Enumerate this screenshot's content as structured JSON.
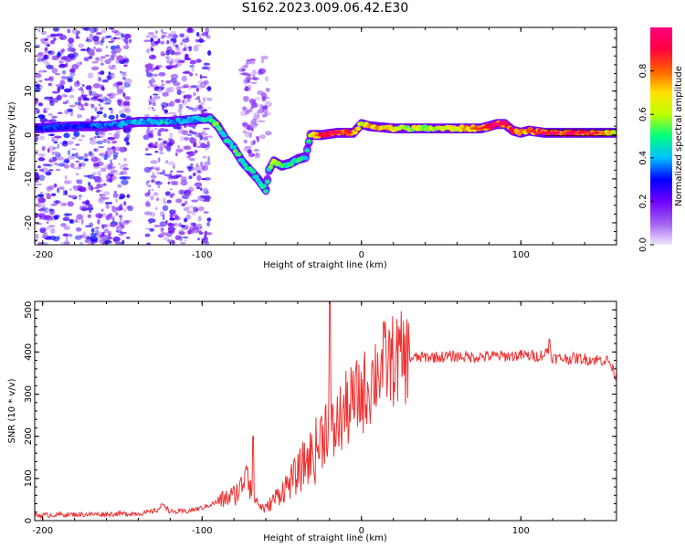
{
  "title": "S162.2023.009.06.42.E30",
  "chart_data": [
    {
      "type": "heatmap",
      "title": "S162.2023.009.06.42.E30",
      "xlabel": "Height of straight line (km)",
      "ylabel": "Frequency (Hz)",
      "xlim": [
        -205,
        160
      ],
      "ylim": [
        -25,
        24.5
      ],
      "x_ticks": [
        -200,
        -100,
        0,
        100
      ],
      "y_ticks": [
        -20,
        -10,
        0,
        10,
        20
      ],
      "colorbar": {
        "label": "Normalized spectral amplitude",
        "range": [
          0,
          1
        ],
        "ticks": [
          0.0,
          0.2,
          0.4,
          0.6,
          0.8
        ],
        "colormap": [
          "#f2e6ff",
          "#a060f0",
          "#7000ff",
          "#0000ff",
          "#00c0ff",
          "#00ff80",
          "#c0ff00",
          "#ffe000",
          "#ff6000",
          "#ff0040",
          "#ff0080"
        ]
      },
      "ridge": {
        "x": [
          -205,
          -180,
          -160,
          -140,
          -120,
          -105,
          -95,
          -90,
          -85,
          -80,
          -75,
          -70,
          -65,
          -60,
          -58,
          -55,
          -50,
          -45,
          -40,
          -35,
          -32,
          -25,
          -15,
          -5,
          0,
          5,
          20,
          40,
          60,
          75,
          85,
          90,
          95,
          100,
          105,
          115,
          130,
          145,
          160
        ],
        "y": [
          1.5,
          2.0,
          2.0,
          3.0,
          3.0,
          3.5,
          3.8,
          2.0,
          -1.0,
          -3.0,
          -6.0,
          -8.0,
          -10.0,
          -12.5,
          -8.0,
          -6.0,
          -7.0,
          -6.5,
          -5.5,
          -5.0,
          0.0,
          0.0,
          0.5,
          0.5,
          2.5,
          2.0,
          1.5,
          1.5,
          1.5,
          1.5,
          2.5,
          2.5,
          1.0,
          0.5,
          1.0,
          0.5,
          0.5,
          0.5,
          0.5
        ],
        "amplitude": [
          0.3,
          0.3,
          0.35,
          0.4,
          0.4,
          0.4,
          0.5,
          0.5,
          0.45,
          0.5,
          0.45,
          0.45,
          0.45,
          0.45,
          0.5,
          0.55,
          0.5,
          0.45,
          0.5,
          0.45,
          0.55,
          0.8,
          0.85,
          0.75,
          0.6,
          0.7,
          0.65,
          0.6,
          0.65,
          0.75,
          0.9,
          0.85,
          0.8,
          0.7,
          0.75,
          0.85,
          0.9,
          0.85,
          0.6
        ]
      },
      "scatter_regions": [
        {
          "x": [
            -205,
            -145
          ],
          "y": [
            -25,
            24.5
          ],
          "amplitude": 0.2
        },
        {
          "x": [
            -135,
            -95
          ],
          "y": [
            -25,
            24.5
          ],
          "amplitude": 0.18
        },
        {
          "x": [
            -75,
            -58
          ],
          "y": [
            -5,
            18
          ],
          "amplitude": 0.12
        }
      ]
    },
    {
      "type": "line",
      "xlabel": "Height of straight line (km)",
      "ylabel": "SNR (10 * v/v)",
      "xlim": [
        -205,
        160
      ],
      "ylim": [
        0,
        520
      ],
      "x_ticks": [
        -200,
        -100,
        0,
        100
      ],
      "y_ticks": [
        0,
        100,
        200,
        300,
        400,
        500
      ],
      "color": "#ee3333",
      "x": [
        -205,
        -190,
        -170,
        -150,
        -135,
        -128,
        -124,
        -120,
        -110,
        -100,
        -90,
        -80,
        -75,
        -72,
        -70,
        -68,
        -65,
        -62,
        -60,
        -55,
        -50,
        -45,
        -40,
        -35,
        -30,
        -28,
        -25,
        -22,
        -20,
        -18,
        -15,
        -10,
        -5,
        0,
        5,
        10,
        15,
        20,
        25,
        30,
        40,
        50,
        60,
        70,
        80,
        90,
        100,
        110,
        115,
        118,
        120,
        125,
        135,
        145,
        155,
        160
      ],
      "y": [
        12,
        14,
        15,
        16,
        18,
        25,
        40,
        20,
        22,
        30,
        45,
        60,
        80,
        150,
        90,
        70,
        40,
        30,
        28,
        50,
        70,
        90,
        110,
        140,
        160,
        170,
        200,
        230,
        250,
        200,
        230,
        260,
        280,
        300,
        320,
        360,
        372,
        380,
        385,
        385,
        388,
        388,
        390,
        388,
        390,
        390,
        392,
        390,
        395,
        410,
        385,
        385,
        385,
        382,
        380,
        340
      ],
      "spikes": [
        {
          "x": -68,
          "y": 200
        },
        {
          "x": -20,
          "y": 520
        },
        {
          "x": 118,
          "y": 430
        }
      ]
    }
  ]
}
